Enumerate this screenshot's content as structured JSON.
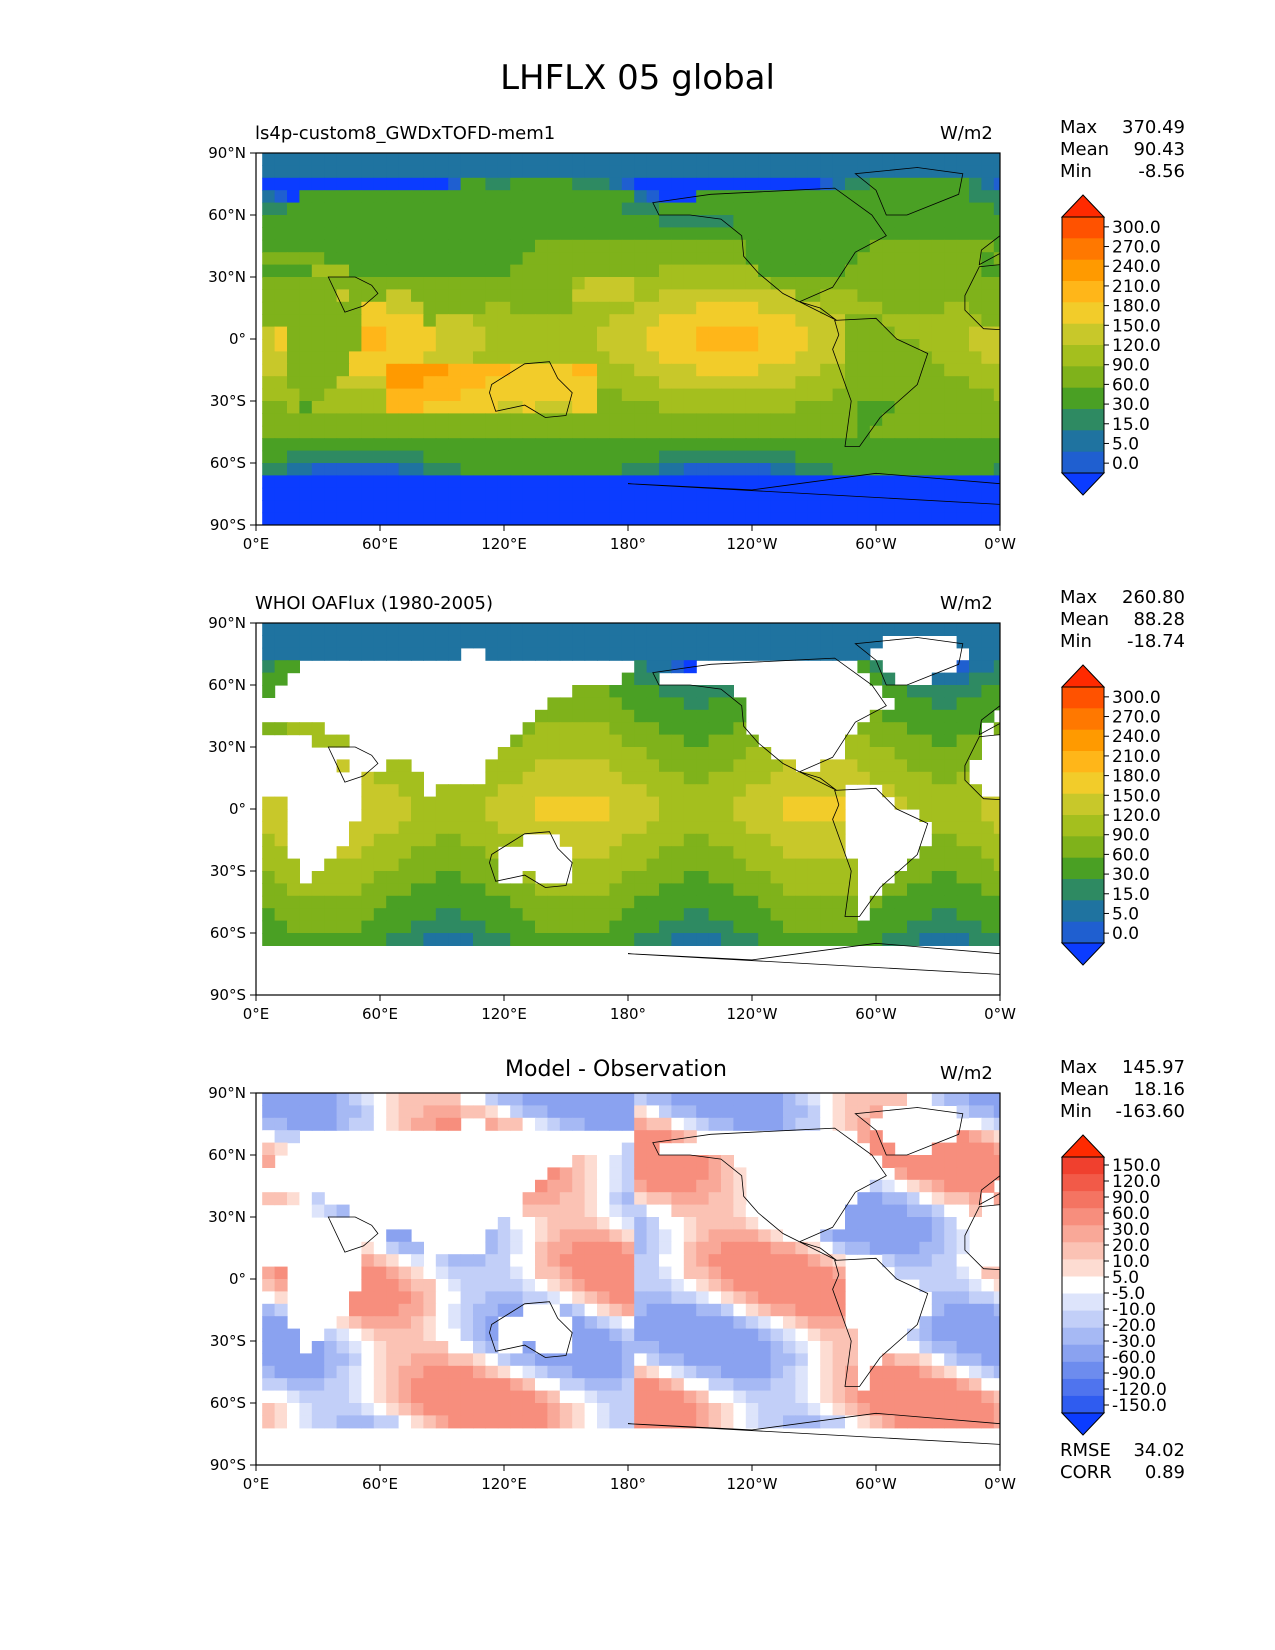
{
  "title": "LHFLX 05 global",
  "lat_ticks": [
    "90°N",
    "60°N",
    "30°N",
    "0°",
    "30°S",
    "60°S",
    "90°S"
  ],
  "lon_ticks": [
    "0°E",
    "60°E",
    "120°E",
    "180°",
    "120°W",
    "60°W",
    "0°W"
  ],
  "panels": [
    {
      "left_label": "ls4p-custom8_GWDxTOFD-mem1",
      "center_label": "",
      "units": "W/m2",
      "stats": [
        {
          "label": "Max",
          "value": "370.49"
        },
        {
          "label": "Mean",
          "value": "90.43"
        },
        {
          "label": "Min",
          "value": "-8.56"
        }
      ],
      "colorbar": {
        "levels": [
          "300.0",
          "270.0",
          "240.0",
          "210.0",
          "180.0",
          "150.0",
          "120.0",
          "90.0",
          "60.0",
          "30.0",
          "15.0",
          "5.0",
          "0.0"
        ],
        "colors": [
          "#ff2a00",
          "#ff5200",
          "#ff7800",
          "#ff9a00",
          "#ffb619",
          "#f2cc2a",
          "#c8c82a",
          "#a4bf1e",
          "#7fb21b",
          "#4aa024",
          "#2e8a62",
          "#1f73a0",
          "#1f5fd0",
          "#0b3cff"
        ]
      }
    },
    {
      "left_label": "WHOI OAFlux (1980-2005)",
      "center_label": "",
      "units": "W/m2",
      "stats": [
        {
          "label": "Max",
          "value": "260.80"
        },
        {
          "label": "Mean",
          "value": "88.28"
        },
        {
          "label": "Min",
          "value": "-18.74"
        }
      ],
      "colorbar": {
        "levels": [
          "300.0",
          "270.0",
          "240.0",
          "210.0",
          "180.0",
          "150.0",
          "120.0",
          "90.0",
          "60.0",
          "30.0",
          "15.0",
          "5.0",
          "0.0"
        ],
        "colors": [
          "#ff2a00",
          "#ff5200",
          "#ff7800",
          "#ff9a00",
          "#ffb619",
          "#f2cc2a",
          "#c8c82a",
          "#a4bf1e",
          "#7fb21b",
          "#4aa024",
          "#2e8a62",
          "#1f73a0",
          "#1f5fd0",
          "#0b3cff"
        ]
      }
    },
    {
      "left_label": "",
      "center_label": "Model - Observation",
      "units": "W/m2",
      "stats": [
        {
          "label": "Max",
          "value": "145.97"
        },
        {
          "label": "Mean",
          "value": "18.16"
        },
        {
          "label": "Min",
          "value": "-163.60"
        }
      ],
      "extra_stats": [
        {
          "label": "RMSE",
          "value": "34.02"
        },
        {
          "label": "CORR",
          "value": "0.89"
        }
      ],
      "colorbar": {
        "levels": [
          "150.0",
          "120.0",
          "90.0",
          "60.0",
          "30.0",
          "20.0",
          "10.0",
          "5.0",
          "-5.0",
          "-10.0",
          "-20.0",
          "-30.0",
          "-60.0",
          "-90.0",
          "-120.0",
          "-150.0"
        ],
        "colors": [
          "#ff2a00",
          "#f0402e",
          "#f25a48",
          "#f47462",
          "#f78e7d",
          "#f9a898",
          "#fbc2b4",
          "#fddcd2",
          "#ffffff",
          "#dde4fb",
          "#c2cff8",
          "#a6b9f4",
          "#8aa2f0",
          "#6d8cee",
          "#4f74ee",
          "#2f5cf0",
          "#0b3cff"
        ]
      }
    }
  ]
}
